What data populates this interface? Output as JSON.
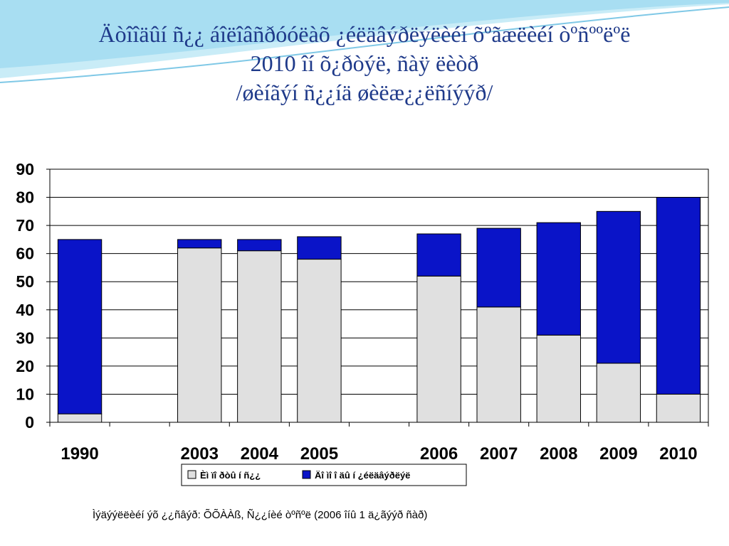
{
  "slide": {
    "title_lines": [
      "Äòîîäûí ñ¿¿ áîëîâñðóóëàõ ¿éëäâýðëýëèéí õºãæëèéí òºñººëºë",
      "2010 îí õ¿ðòýë, ñàÿ ëèòð",
      "/øèíãýí ñ¿¿íä øèëæ¿¿ëñíýýð/"
    ],
    "source": "Ìýäýýëëèéí ýõ ¿¿ñâýð: ÕÕÀÀß, Ñ¿¿íèé òºñºë (2006 îíû 1 ä¿ãýýð ñàð)"
  },
  "colors": {
    "series_light": "#e0e0e0",
    "series_dark": "#0a14c8",
    "title": "#1f3a8a",
    "decor": "#7fc8e6"
  },
  "chart_data": {
    "type": "bar",
    "stacked": true,
    "categories": [
      "1990",
      "2003",
      "2004",
      "2005",
      "2006",
      "2007",
      "2008",
      "2009",
      "2010"
    ],
    "gap_slots_after": [
      "1990",
      "2005"
    ],
    "series": [
      {
        "name": "Èì ïî ðòû í  ñ¿¿",
        "values": [
          3,
          62,
          61,
          58,
          52,
          41,
          31,
          21,
          10
        ]
      },
      {
        "name": "Äî ìî î äû í  ¿éëäâýðëýë",
        "values": [
          62,
          3,
          4,
          8,
          15,
          28,
          40,
          54,
          70
        ]
      }
    ],
    "totals": [
      65,
      65,
      65,
      66,
      67,
      69,
      71,
      75,
      80
    ],
    "ylim": [
      0,
      90
    ],
    "yticks": [
      0,
      10,
      20,
      30,
      40,
      50,
      60,
      70,
      80,
      90
    ],
    "grid": true,
    "legend_position": "bottom"
  }
}
